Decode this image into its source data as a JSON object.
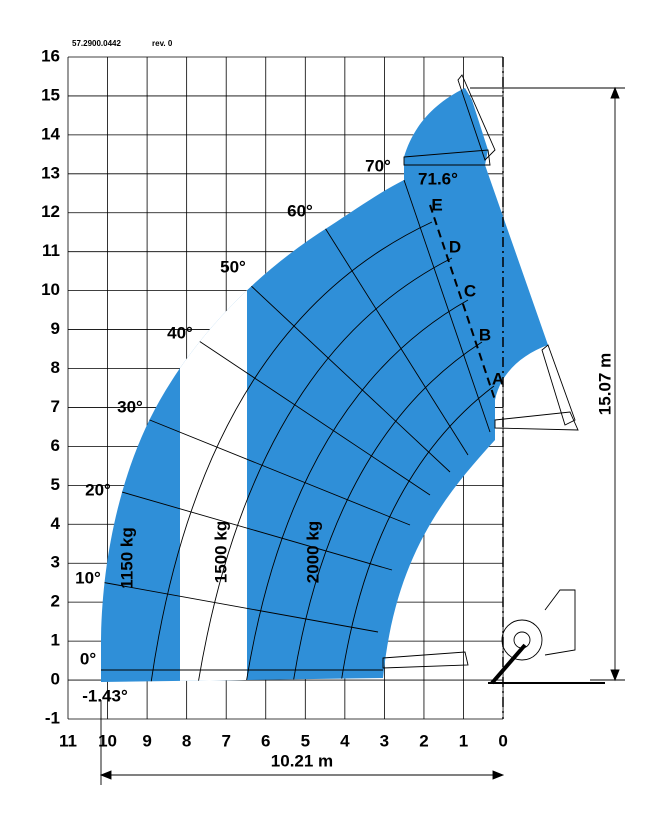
{
  "header": {
    "code": "57.2900.0442",
    "rev": "rev. 0"
  },
  "y_axis": {
    "labels": [
      "16",
      "15",
      "14",
      "13",
      "12",
      "11",
      "10",
      "9",
      "8",
      "7",
      "6",
      "5",
      "4",
      "3",
      "2",
      "1",
      "0",
      "-1"
    ]
  },
  "x_axis": {
    "labels": [
      "11",
      "10",
      "9",
      "8",
      "7",
      "6",
      "5",
      "4",
      "3",
      "2",
      "1",
      "0"
    ]
  },
  "angles": [
    "70°",
    "71.6°",
    "60°",
    "50°",
    "40°",
    "30°",
    "20°",
    "10°",
    "0°",
    "-1.43°"
  ],
  "extensions": [
    "E",
    "D",
    "C",
    "B",
    "A"
  ],
  "loads": [
    "1150 kg",
    "1500 kg",
    "2000 kg"
  ],
  "dimensions": {
    "height": "15.07 m",
    "reach": "10.21 m"
  }
}
